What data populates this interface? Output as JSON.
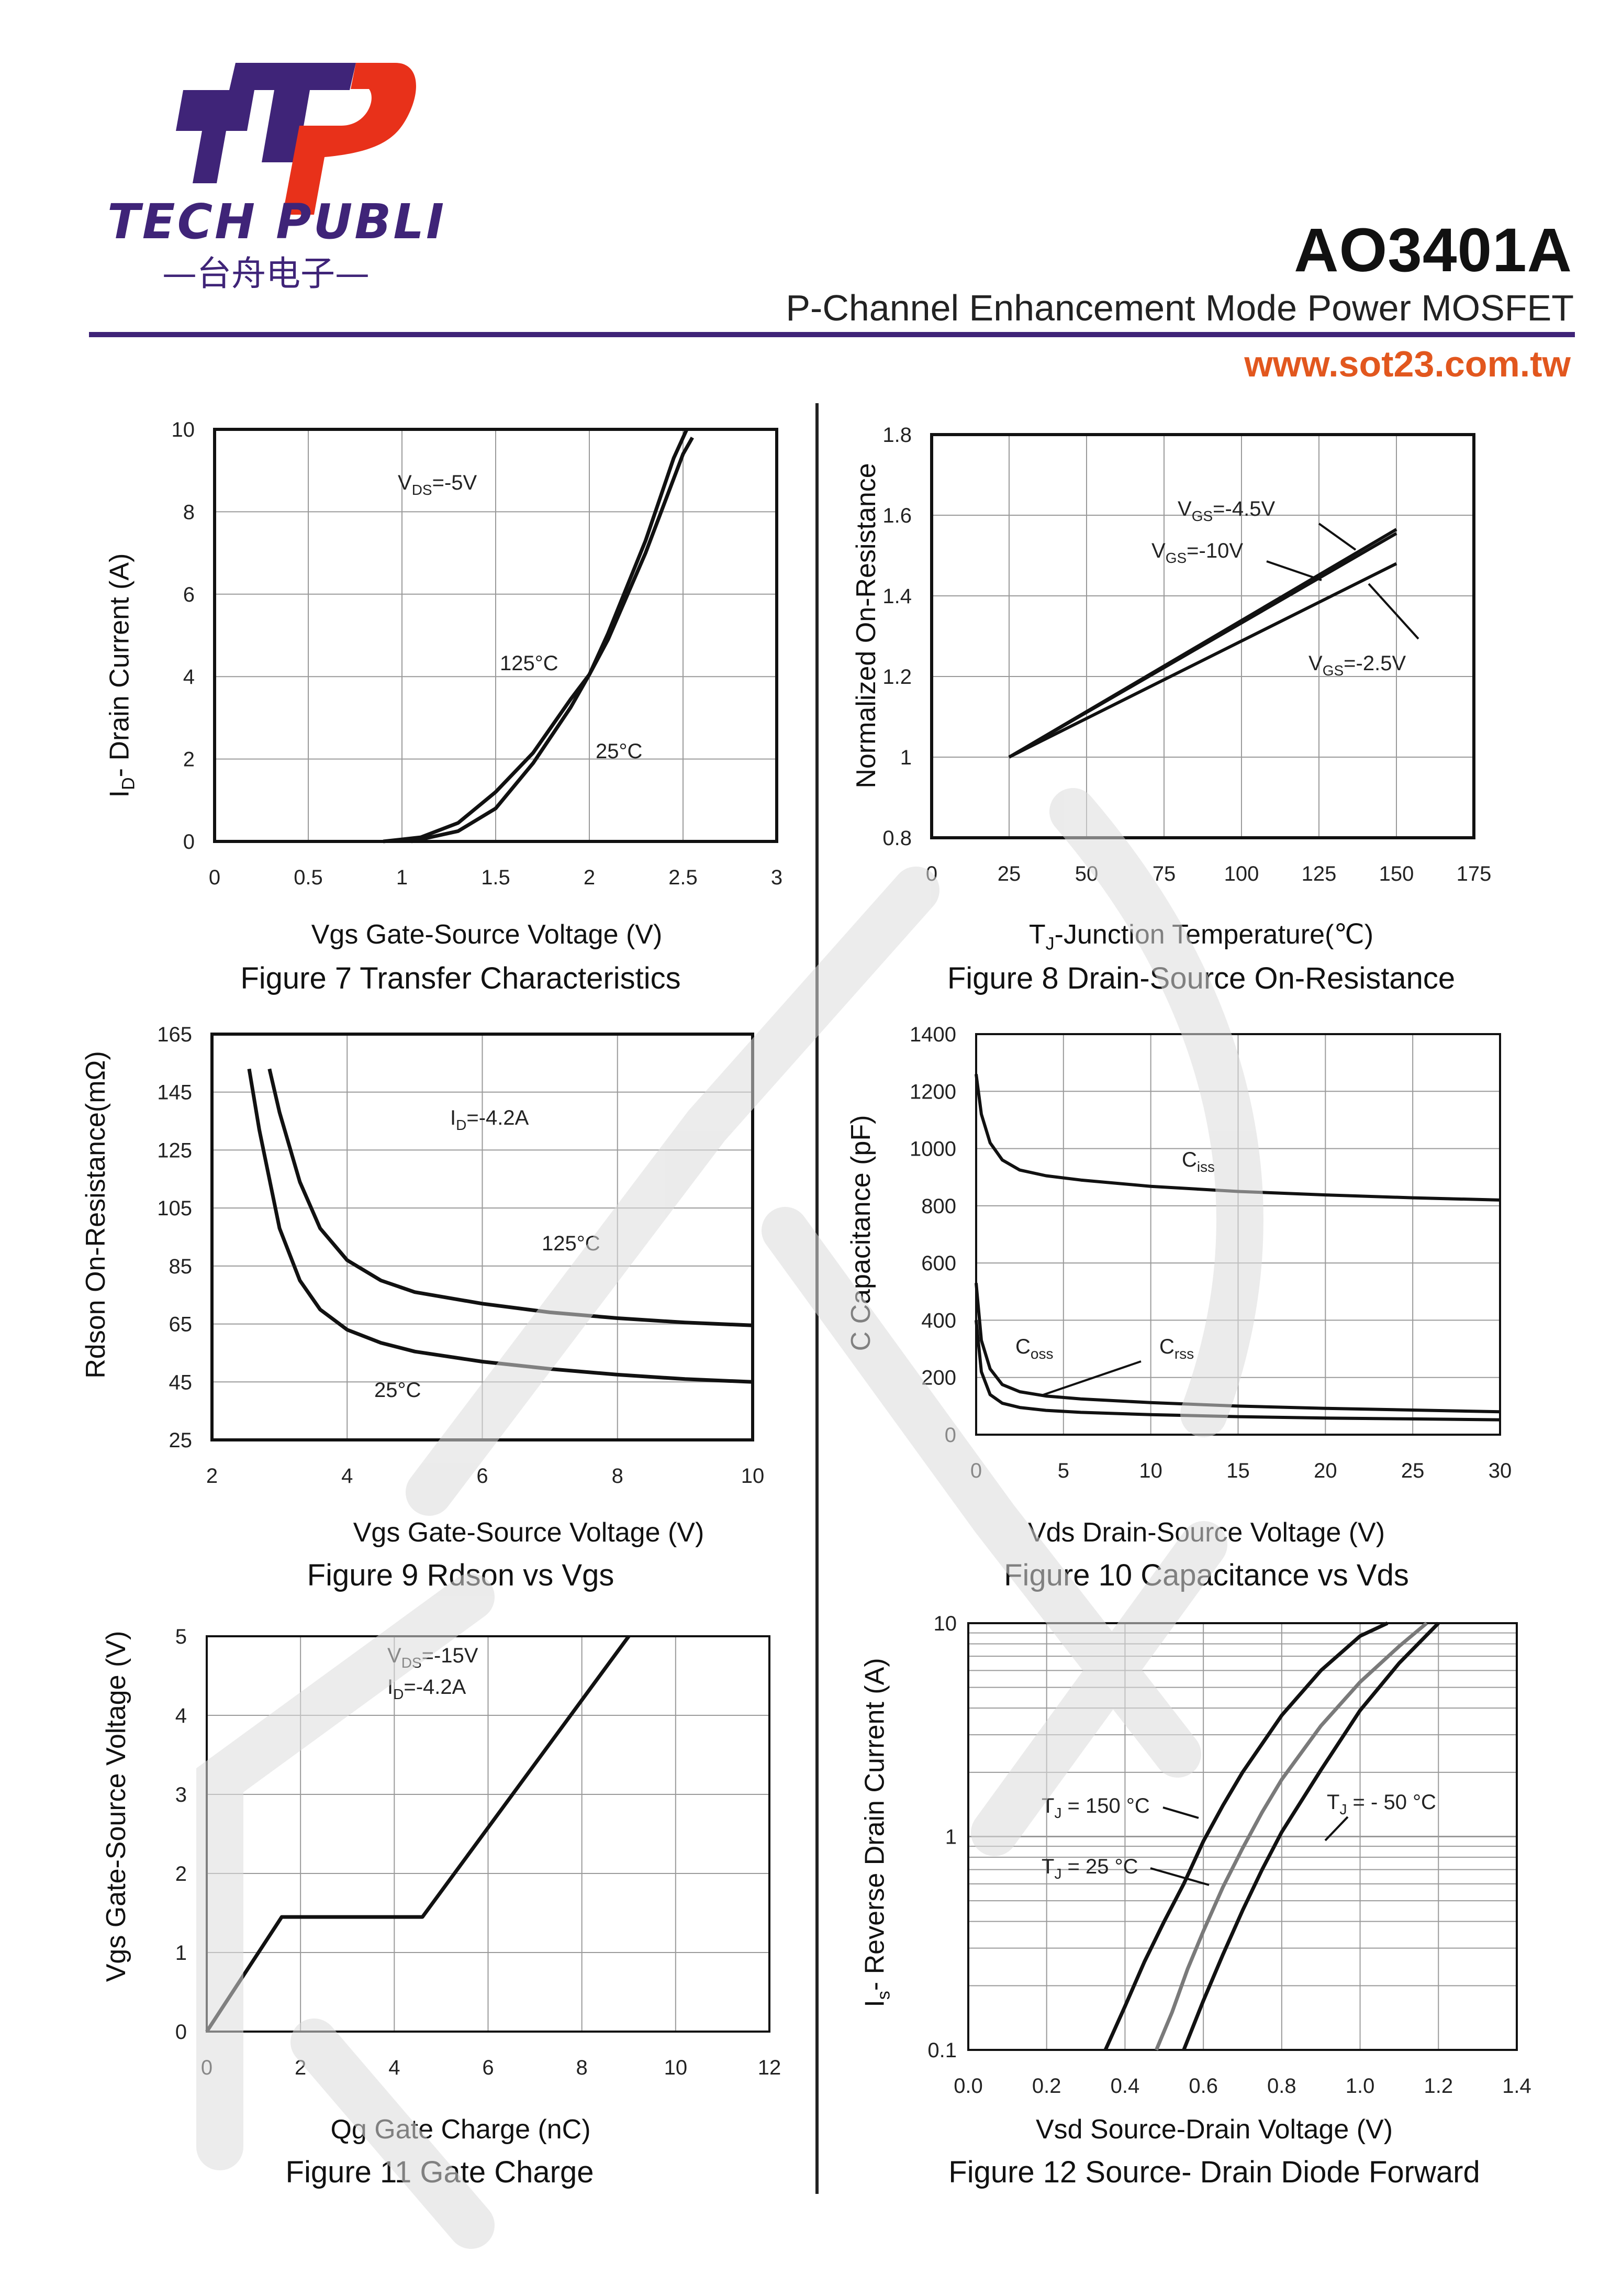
{
  "header": {
    "brand": "TECH PUBLIC",
    "brand_sub": "—台舟电子—",
    "part_number": "AO3401A",
    "subtitle": "P-Channel Enhancement Mode Power MOSFET",
    "website": "www.sot23.com.tw"
  },
  "colors": {
    "brand_purple": "#3f2478",
    "brand_red": "#e8311a",
    "website_orange": "#e2571e",
    "curve": "#111111",
    "grid": "#999999",
    "curve_gray": "#7a7a7a"
  },
  "chart_data": [
    {
      "id": "fig7",
      "type": "line",
      "title": "Figure 7 Transfer Characteristics",
      "xlabel": "Vgs Gate-Source Voltage (V)",
      "ylabel_main": "I",
      "ylabel_sub": "D",
      "ylabel_rest": "- Drain Current (A)",
      "xlim": [
        0,
        3
      ],
      "ylim": [
        0,
        10
      ],
      "xticks": [
        "0",
        "0.5",
        "1",
        "1.5",
        "2",
        "2.5",
        "3"
      ],
      "yticks": [
        "0",
        "2",
        "4",
        "6",
        "8",
        "10"
      ],
      "condition": {
        "main": "V",
        "sub": "DS",
        "rest": "=-5V"
      },
      "series": [
        {
          "name": "125°C",
          "x": [
            0.9,
            1.1,
            1.3,
            1.5,
            1.7,
            1.9,
            2.0,
            2.1,
            2.3,
            2.5,
            2.55
          ],
          "y": [
            0,
            0.1,
            0.45,
            1.2,
            2.15,
            3.45,
            4.05,
            4.9,
            7.0,
            9.4,
            9.8
          ]
        },
        {
          "name": "25°C",
          "x": [
            1.05,
            1.3,
            1.5,
            1.7,
            1.9,
            2.0,
            2.1,
            2.3,
            2.45,
            2.52
          ],
          "y": [
            0,
            0.25,
            0.8,
            1.9,
            3.25,
            4.05,
            5.05,
            7.3,
            9.3,
            10.0
          ]
        }
      ],
      "labels": [
        "125°C",
        "25°C"
      ]
    },
    {
      "id": "fig8",
      "type": "line",
      "title": "Figure 8 Drain-Source On-Resistance",
      "xlabel_main": "T",
      "xlabel_sub": "J",
      "xlabel_rest": "-Junction Temperature(℃)",
      "ylabel": "Normalized On-Resistance",
      "xlim": [
        0,
        175
      ],
      "ylim": [
        0.8,
        1.8
      ],
      "xticks": [
        "0",
        "25",
        "50",
        "75",
        "100",
        "125",
        "150",
        "175"
      ],
      "yticks": [
        "0.8",
        "1",
        "1.2",
        "1.4",
        "1.6",
        "1.8"
      ],
      "series": [
        {
          "name": "VGS=-4.5V",
          "x": [
            25,
            150
          ],
          "y": [
            1.0,
            1.565
          ]
        },
        {
          "name": "VGS=-10V",
          "x": [
            25,
            150
          ],
          "y": [
            1.0,
            1.555
          ]
        },
        {
          "name": "VGS=-2.5V",
          "x": [
            25,
            150
          ],
          "y": [
            1.0,
            1.48
          ]
        }
      ],
      "labels": [
        {
          "main": "V",
          "sub": "GS",
          "rest": "=-4.5V"
        },
        {
          "main": "V",
          "sub": "GS",
          "rest": "=-10V"
        },
        {
          "main": "V",
          "sub": "GS",
          "rest": "=-2.5V"
        }
      ]
    },
    {
      "id": "fig9",
      "type": "line",
      "title": "Figure 9 Rdson vs Vgs",
      "xlabel": "Vgs Gate-Source Voltage (V)",
      "ylabel": "Rdson On-Resistance(mΩ)",
      "xlim": [
        2,
        10
      ],
      "ylim": [
        25,
        165
      ],
      "xticks": [
        "2",
        "4",
        "6",
        "8",
        "10"
      ],
      "yticks": [
        "25",
        "45",
        "65",
        "85",
        "105",
        "125",
        "145",
        "165"
      ],
      "condition": {
        "main": "I",
        "sub": "D",
        "rest": "=-4.2A"
      },
      "series": [
        {
          "name": "125°C",
          "x": [
            2.85,
            3.0,
            3.3,
            3.6,
            4.0,
            4.5,
            5.0,
            6.0,
            7.0,
            8.0,
            9.0,
            10.0
          ],
          "y": [
            153,
            138,
            114,
            98,
            87,
            80,
            76,
            72,
            69,
            67,
            65.5,
            64.5
          ]
        },
        {
          "name": "25°C",
          "x": [
            2.55,
            2.7,
            3.0,
            3.3,
            3.6,
            4.0,
            4.5,
            5.0,
            6.0,
            7.0,
            8.0,
            9.0,
            10.0
          ],
          "y": [
            153,
            132,
            98,
            80,
            70,
            63,
            58.5,
            55.5,
            52,
            49.5,
            47.5,
            46,
            45
          ]
        }
      ],
      "labels": [
        "125°C",
        "25°C"
      ]
    },
    {
      "id": "fig10",
      "type": "line",
      "title": "Figure 10 Capacitance vs Vds",
      "xlabel": "Vds Drain-Source Voltage (V)",
      "ylabel": "C Capacitance (pF)",
      "xlim": [
        0,
        30
      ],
      "ylim": [
        0,
        1400
      ],
      "xticks": [
        "0",
        "5",
        "10",
        "15",
        "20",
        "25",
        "30"
      ],
      "yticks": [
        "0",
        "200",
        "400",
        "600",
        "800",
        "1000",
        "1200",
        "1400"
      ],
      "series": [
        {
          "name": "Ciss",
          "x": [
            0,
            0.3,
            0.8,
            1.5,
            2.5,
            4,
            6,
            10,
            15,
            20,
            25,
            30
          ],
          "y": [
            1260,
            1120,
            1020,
            960,
            925,
            905,
            890,
            868,
            850,
            838,
            828,
            820
          ]
        },
        {
          "name": "Coss",
          "x": [
            0,
            0.3,
            0.8,
            1.5,
            2.5,
            4,
            6,
            10,
            15,
            20,
            25,
            30
          ],
          "y": [
            530,
            330,
            230,
            175,
            150,
            135,
            125,
            112,
            100,
            92,
            86,
            80
          ]
        },
        {
          "name": "Crss",
          "x": [
            0,
            0.3,
            0.8,
            1.5,
            2.5,
            4,
            6,
            10,
            15,
            20,
            25,
            30
          ],
          "y": [
            400,
            220,
            140,
            110,
            95,
            85,
            78,
            70,
            63,
            58,
            55,
            52
          ]
        }
      ],
      "labels": [
        {
          "main": "C",
          "sub": "iss"
        },
        {
          "main": "C",
          "sub": "oss"
        },
        {
          "main": "C",
          "sub": "rss"
        }
      ]
    },
    {
      "id": "fig11",
      "type": "line",
      "title": "Figure 11 Gate Charge",
      "xlabel": "Qg Gate Charge (nC)",
      "ylabel": "Vgs Gate-Source Voltage (V)",
      "xlim": [
        0,
        12
      ],
      "ylim": [
        0,
        5
      ],
      "xticks": [
        "0",
        "2",
        "4",
        "6",
        "8",
        "10",
        "12"
      ],
      "yticks": [
        "0",
        "1",
        "2",
        "3",
        "4",
        "5"
      ],
      "condition_1": {
        "main": "V",
        "sub": "DS",
        "rest": "=-15V"
      },
      "condition_2": {
        "main": "I",
        "sub": "D",
        "rest": "=-4.2A"
      },
      "series": [
        {
          "name": "Vgs",
          "x": [
            0,
            1.6,
            4.6,
            9.0
          ],
          "y": [
            0,
            1.45,
            1.45,
            5.0
          ]
        }
      ]
    },
    {
      "id": "fig12",
      "type": "line",
      "yscale": "log",
      "title": "Figure 12 Source- Drain Diode Forward",
      "xlabel": "Vsd Source-Drain Voltage (V)",
      "ylabel_main": "I",
      "ylabel_sub": "s",
      "ylabel_rest": "- Reverse Drain Current (A)",
      "xlim": [
        0,
        1.4
      ],
      "ylim": [
        0.1,
        10
      ],
      "xticks": [
        "0.0",
        "0.2",
        "0.4",
        "0.6",
        "0.8",
        "1.0",
        "1.2",
        "1.4"
      ],
      "yticks": [
        "0.1",
        "1",
        "10"
      ],
      "series": [
        {
          "name": "TJ = 150 °C",
          "x": [
            0.35,
            0.4,
            0.45,
            0.5,
            0.55,
            0.6,
            0.65,
            0.7,
            0.8,
            0.9,
            1.0,
            1.07
          ],
          "y": [
            0.1,
            0.16,
            0.26,
            0.4,
            0.6,
            0.95,
            1.4,
            2.0,
            3.7,
            6.0,
            8.7,
            10
          ]
        },
        {
          "name": "TJ = 25 °C",
          "x": [
            0.48,
            0.52,
            0.56,
            0.6,
            0.65,
            0.7,
            0.75,
            0.8,
            0.9,
            1.0,
            1.1,
            1.17
          ],
          "y": [
            0.1,
            0.15,
            0.24,
            0.36,
            0.58,
            0.88,
            1.3,
            1.85,
            3.3,
            5.3,
            7.8,
            10
          ]
        },
        {
          "name": "TJ = - 50 °C",
          "x": [
            0.55,
            0.6,
            0.65,
            0.7,
            0.75,
            0.8,
            0.9,
            1.0,
            1.1,
            1.2
          ],
          "y": [
            0.1,
            0.17,
            0.28,
            0.45,
            0.7,
            1.05,
            2.05,
            3.9,
            6.5,
            10
          ]
        }
      ],
      "labels": [
        {
          "main": "T",
          "sub": "J",
          "rest": " = 150 °C"
        },
        {
          "main": "T",
          "sub": "J",
          "rest": " = 25 °C"
        },
        {
          "main": "T",
          "sub": "J",
          "rest": " = - 50 °C"
        }
      ]
    }
  ]
}
